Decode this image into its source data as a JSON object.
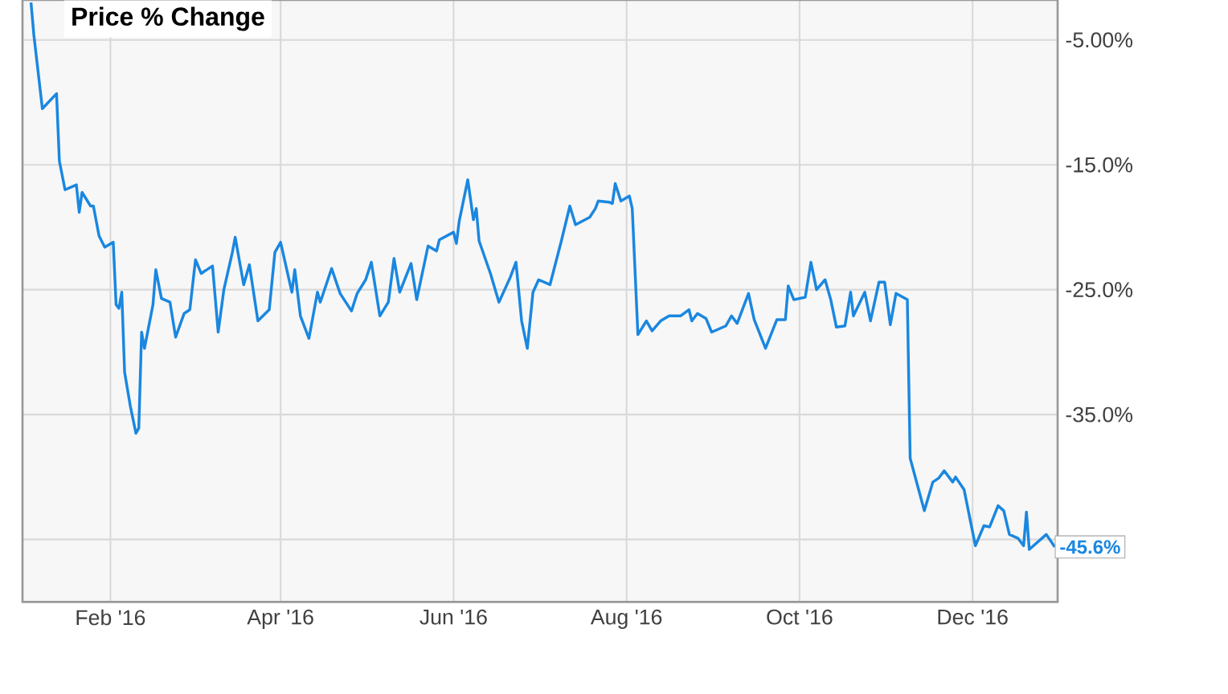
{
  "chart_data": {
    "type": "line",
    "title": "Price % Change",
    "color": "#1a87e0",
    "x": [
      "2016-01-04",
      "2016-01-05",
      "2016-01-08",
      "2016-01-13",
      "2016-01-14",
      "2016-01-16",
      "2016-01-20",
      "2016-01-21",
      "2016-01-22",
      "2016-01-25",
      "2016-01-26",
      "2016-01-28",
      "2016-01-30",
      "2016-02-02",
      "2016-02-03",
      "2016-02-04",
      "2016-02-05",
      "2016-02-06",
      "2016-02-08",
      "2016-02-10",
      "2016-02-11",
      "2016-02-12",
      "2016-02-13",
      "2016-02-16",
      "2016-02-17",
      "2016-02-19",
      "2016-02-22",
      "2016-02-24",
      "2016-02-27",
      "2016-02-29",
      "2016-03-02",
      "2016-03-04",
      "2016-03-08",
      "2016-03-10",
      "2016-03-12",
      "2016-03-15",
      "2016-03-16",
      "2016-03-19",
      "2016-03-21",
      "2016-03-24",
      "2016-03-28",
      "2016-03-30",
      "2016-04-01",
      "2016-04-05",
      "2016-04-06",
      "2016-04-08",
      "2016-04-11",
      "2016-04-14",
      "2016-04-15",
      "2016-04-19",
      "2016-04-22",
      "2016-04-26",
      "2016-04-28",
      "2016-05-01",
      "2016-05-03",
      "2016-05-06",
      "2016-05-09",
      "2016-05-11",
      "2016-05-13",
      "2016-05-17",
      "2016-05-19",
      "2016-05-23",
      "2016-05-26",
      "2016-05-27",
      "2016-06-01",
      "2016-06-02",
      "2016-06-03",
      "2016-06-06",
      "2016-06-08",
      "2016-06-09",
      "2016-06-10",
      "2016-06-14",
      "2016-06-17",
      "2016-06-21",
      "2016-06-23",
      "2016-06-25",
      "2016-06-27",
      "2016-06-29",
      "2016-07-01",
      "2016-07-05",
      "2016-07-09",
      "2016-07-12",
      "2016-07-14",
      "2016-07-19",
      "2016-07-21",
      "2016-07-22",
      "2016-07-26",
      "2016-07-27",
      "2016-07-28",
      "2016-07-30",
      "2016-08-02",
      "2016-08-03",
      "2016-08-05",
      "2016-08-08",
      "2016-08-10",
      "2016-08-13",
      "2016-08-16",
      "2016-08-20",
      "2016-08-23",
      "2016-08-24",
      "2016-08-26",
      "2016-08-29",
      "2016-08-31",
      "2016-09-05",
      "2016-09-07",
      "2016-09-09",
      "2016-09-13",
      "2016-09-15",
      "2016-09-19",
      "2016-09-23",
      "2016-09-26",
      "2016-09-27",
      "2016-09-29",
      "2016-10-03",
      "2016-10-05",
      "2016-10-07",
      "2016-10-10",
      "2016-10-12",
      "2016-10-14",
      "2016-10-17",
      "2016-10-19",
      "2016-10-20",
      "2016-10-24",
      "2016-10-26",
      "2016-10-29",
      "2016-10-31",
      "2016-11-02",
      "2016-11-04",
      "2016-11-08",
      "2016-11-09",
      "2016-11-14",
      "2016-11-17",
      "2016-11-19",
      "2016-11-21",
      "2016-11-24",
      "2016-11-25",
      "2016-11-28",
      "2016-12-02",
      "2016-12-05",
      "2016-12-07",
      "2016-12-10",
      "2016-12-12",
      "2016-12-14",
      "2016-12-17",
      "2016-12-19",
      "2016-12-20",
      "2016-12-21",
      "2016-12-27",
      "2016-12-30"
    ],
    "values": [
      -2.0,
      -4.6,
      -10.5,
      -9.3,
      -14.7,
      -17.0,
      -16.6,
      -18.8,
      -17.2,
      -18.3,
      -18.3,
      -20.7,
      -21.6,
      -21.2,
      -26.2,
      -26.5,
      -25.2,
      -31.6,
      -34.3,
      -36.5,
      -36.1,
      -28.4,
      -29.7,
      -26.2,
      -23.4,
      -25.7,
      -26.0,
      -28.8,
      -26.9,
      -26.6,
      -22.6,
      -23.7,
      -23.1,
      -28.4,
      -25.0,
      -22.0,
      -20.8,
      -24.6,
      -23.0,
      -27.5,
      -26.6,
      -22.0,
      -21.2,
      -25.2,
      -23.4,
      -27.1,
      -28.9,
      -25.2,
      -26.0,
      -23.3,
      -25.3,
      -26.7,
      -25.3,
      -24.2,
      -22.8,
      -27.1,
      -26.0,
      -22.5,
      -25.2,
      -22.9,
      -25.8,
      -21.5,
      -21.9,
      -21.0,
      -20.4,
      -21.3,
      -19.5,
      -16.2,
      -19.4,
      -18.5,
      -21.1,
      -23.7,
      -26.0,
      -24.0,
      -22.8,
      -27.5,
      -29.7,
      -25.2,
      -24.2,
      -24.6,
      -21.1,
      -18.3,
      -19.8,
      -19.2,
      -18.5,
      -17.9,
      -18.0,
      -18.1,
      -16.5,
      -17.9,
      -17.5,
      -18.5,
      -28.6,
      -27.5,
      -28.3,
      -27.5,
      -27.1,
      -27.1,
      -26.6,
      -27.5,
      -26.9,
      -27.3,
      -28.4,
      -27.9,
      -27.1,
      -27.7,
      -25.3,
      -27.4,
      -29.7,
      -27.4,
      -27.4,
      -24.7,
      -25.8,
      -25.6,
      -22.8,
      -25.0,
      -24.2,
      -25.8,
      -28.0,
      -27.9,
      -25.2,
      -27.1,
      -25.2,
      -27.5,
      -24.4,
      -24.4,
      -27.8,
      -25.3,
      -25.8,
      -38.5,
      -42.7,
      -40.4,
      -40.1,
      -39.5,
      -40.4,
      -40.0,
      -41.0,
      -45.5,
      -43.9,
      -44.0,
      -42.3,
      -42.7,
      -44.6,
      -44.9,
      -45.5,
      -42.8,
      -45.8,
      -44.6,
      -45.6
    ],
    "xlim": [
      "2016-01-01",
      "2016-12-31"
    ],
    "xticks": [
      {
        "value": "2016-02-01",
        "label": "Feb '16"
      },
      {
        "value": "2016-04-01",
        "label": "Apr '16"
      },
      {
        "value": "2016-06-01",
        "label": "Jun '16"
      },
      {
        "value": "2016-08-01",
        "label": "Aug '16"
      },
      {
        "value": "2016-10-01",
        "label": "Oct '16"
      },
      {
        "value": "2016-12-01",
        "label": "Dec '16"
      }
    ],
    "ylim": [
      -50.0,
      -1.8
    ],
    "yticks": [
      {
        "value": -5,
        "label": "-5.00%"
      },
      {
        "value": -15,
        "label": "-15.0%"
      },
      {
        "value": -25,
        "label": "-25.0%"
      },
      {
        "value": -35,
        "label": "-35.0%"
      },
      {
        "value": -45,
        "label": null
      }
    ],
    "grid": true,
    "annotations": [
      {
        "text": "-45.6%",
        "x": "2016-12-30",
        "y": -45.6
      }
    ]
  }
}
